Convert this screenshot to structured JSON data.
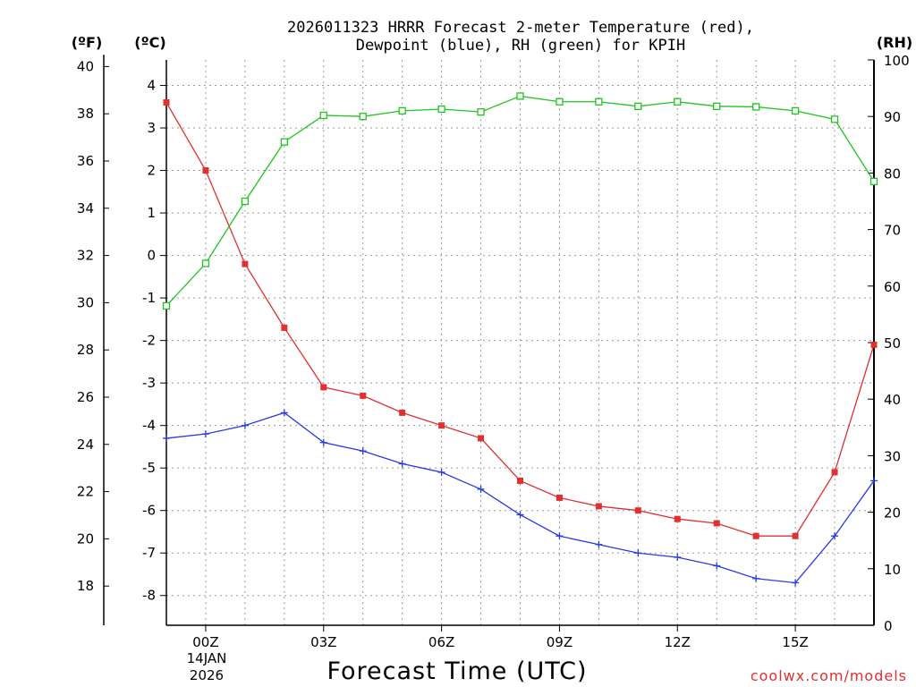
{
  "chart_data": {
    "type": "line",
    "title_line1": "2026011323 HRRR Forecast 2-meter Temperature (red),",
    "title_line2": "Dewpoint (blue), RH (green) for KPIH",
    "xlabel": "Forecast Time (UTC)",
    "date_label_day": "14JAN",
    "date_label_year": "2026",
    "watermark": "coolwx.com/models",
    "unit_f": "(ºF)",
    "unit_c": "(ºC)",
    "unit_rh": "(RH)",
    "x_hours": [
      -1,
      0,
      1,
      2,
      3,
      4,
      5,
      6,
      7,
      8,
      9,
      10,
      11,
      12,
      13,
      14,
      15,
      16,
      17
    ],
    "x_ticks": [
      {
        "h": 0,
        "label": "00Z"
      },
      {
        "h": 3,
        "label": "03Z"
      },
      {
        "h": 6,
        "label": "06Z"
      },
      {
        "h": 9,
        "label": "09Z"
      },
      {
        "h": 12,
        "label": "12Z"
      },
      {
        "h": 15,
        "label": "15Z"
      }
    ],
    "celsius_axis": {
      "min": -8.7,
      "max": 4.6,
      "ticks": [
        4,
        3,
        2,
        1,
        0,
        -1,
        -2,
        -3,
        -4,
        -5,
        -6,
        -7,
        -8
      ]
    },
    "fahrenheit_axis": {
      "ticks": [
        40,
        38,
        36,
        34,
        32,
        30,
        28,
        26,
        24,
        22,
        20,
        18
      ]
    },
    "rh_axis": {
      "min": 0,
      "max": 100,
      "ticks": [
        0,
        10,
        20,
        30,
        40,
        50,
        60,
        70,
        80,
        90,
        100
      ]
    },
    "series": [
      {
        "name": "Temperature",
        "axis": "C",
        "color": "#e03030",
        "marker": "filled-square",
        "values": [
          3.6,
          2.0,
          -0.2,
          -1.7,
          -3.1,
          -3.3,
          -3.7,
          -4.0,
          -4.3,
          -5.3,
          -5.7,
          -5.9,
          -6.0,
          -6.2,
          -6.3,
          -6.6,
          -6.6,
          -5.1,
          -2.1
        ]
      },
      {
        "name": "Dewpoint",
        "axis": "C",
        "color": "#2a3ae0",
        "marker": "plus",
        "values": [
          -4.3,
          -4.2,
          -4.0,
          -3.7,
          -4.4,
          -4.6,
          -4.9,
          -5.1,
          -5.5,
          -6.1,
          -6.6,
          -6.8,
          -7.0,
          -7.1,
          -7.3,
          -7.6,
          -7.7,
          -6.6,
          -5.3
        ]
      },
      {
        "name": "RH",
        "axis": "RH",
        "color": "#22c422",
        "marker": "open-square",
        "values": [
          56.5,
          64.0,
          75.0,
          85.5,
          90.2,
          90.0,
          91.0,
          91.3,
          90.8,
          93.6,
          92.6,
          92.6,
          91.8,
          92.6,
          91.8,
          91.7,
          91.0,
          89.5,
          78.5
        ]
      }
    ]
  }
}
